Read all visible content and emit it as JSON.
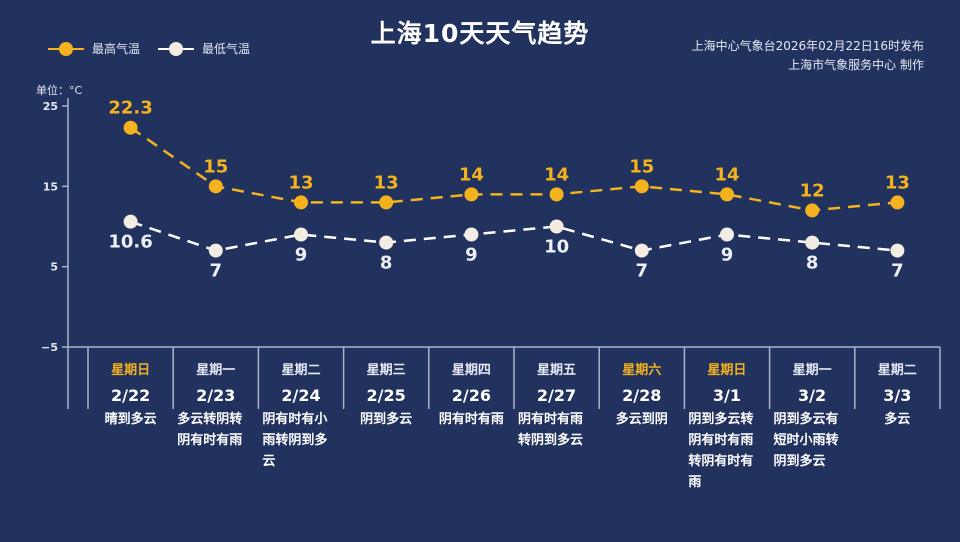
{
  "header": {
    "title": "上海10天天气趋势",
    "source_line1": "上海中心气象台2026年02月22日16时发布",
    "source_line2": "上海市气象服务中心  制作"
  },
  "legend": {
    "high_label": "最高气温",
    "low_label": "最低气温"
  },
  "unit_label": "单位：°C",
  "colors": {
    "background": "#21325f",
    "high": "#f4b21e",
    "low": "#f2ece2",
    "axis": "#aab4c8"
  },
  "days": [
    {
      "weekday": "星期日",
      "date": "2/22",
      "weather": "晴到多云",
      "highlight": true
    },
    {
      "weekday": "星期一",
      "date": "2/23",
      "weather": "多云转阴转阴有时有雨",
      "highlight": false
    },
    {
      "weekday": "星期二",
      "date": "2/24",
      "weather": "阴有时有小雨转阴到多云",
      "highlight": false
    },
    {
      "weekday": "星期三",
      "date": "2/25",
      "weather": "阴到多云",
      "highlight": false
    },
    {
      "weekday": "星期四",
      "date": "2/26",
      "weather": "阴有时有雨",
      "highlight": false
    },
    {
      "weekday": "星期五",
      "date": "2/27",
      "weather": "阴有时有雨转阴到多云",
      "highlight": false
    },
    {
      "weekday": "星期六",
      "date": "2/28",
      "weather": "多云到阴",
      "highlight": true
    },
    {
      "weekday": "星期日",
      "date": "3/1",
      "weather": "阴到多云转阴有时有雨转阴有时有雨",
      "highlight": true
    },
    {
      "weekday": "星期一",
      "date": "3/2",
      "weather": "阴到多云有短时小雨转阴到多云",
      "highlight": false
    },
    {
      "weekday": "星期二",
      "date": "3/3",
      "weather": "多云",
      "highlight": false
    }
  ],
  "chart_data": {
    "type": "line",
    "title": "上海10天天气趋势",
    "categories": [
      "2/22",
      "2/23",
      "2/24",
      "2/25",
      "2/26",
      "2/27",
      "2/28",
      "3/1",
      "3/2",
      "3/3"
    ],
    "series": [
      {
        "name": "最高气温",
        "values": [
          22.3,
          15,
          13,
          13,
          14,
          14,
          15,
          14,
          12,
          13
        ],
        "color": "#f4b21e",
        "style": "dashed"
      },
      {
        "name": "最低气温",
        "values": [
          10.6,
          7,
          9,
          8,
          9,
          10,
          7,
          9,
          8,
          7
        ],
        "color": "#f2ece2",
        "style": "dashed"
      }
    ],
    "ylabel": "单位：°C",
    "yticks": [
      25,
      15,
      5,
      -5
    ],
    "ylim": [
      -5,
      25
    ],
    "grid": false,
    "legend_position": "top-left"
  }
}
